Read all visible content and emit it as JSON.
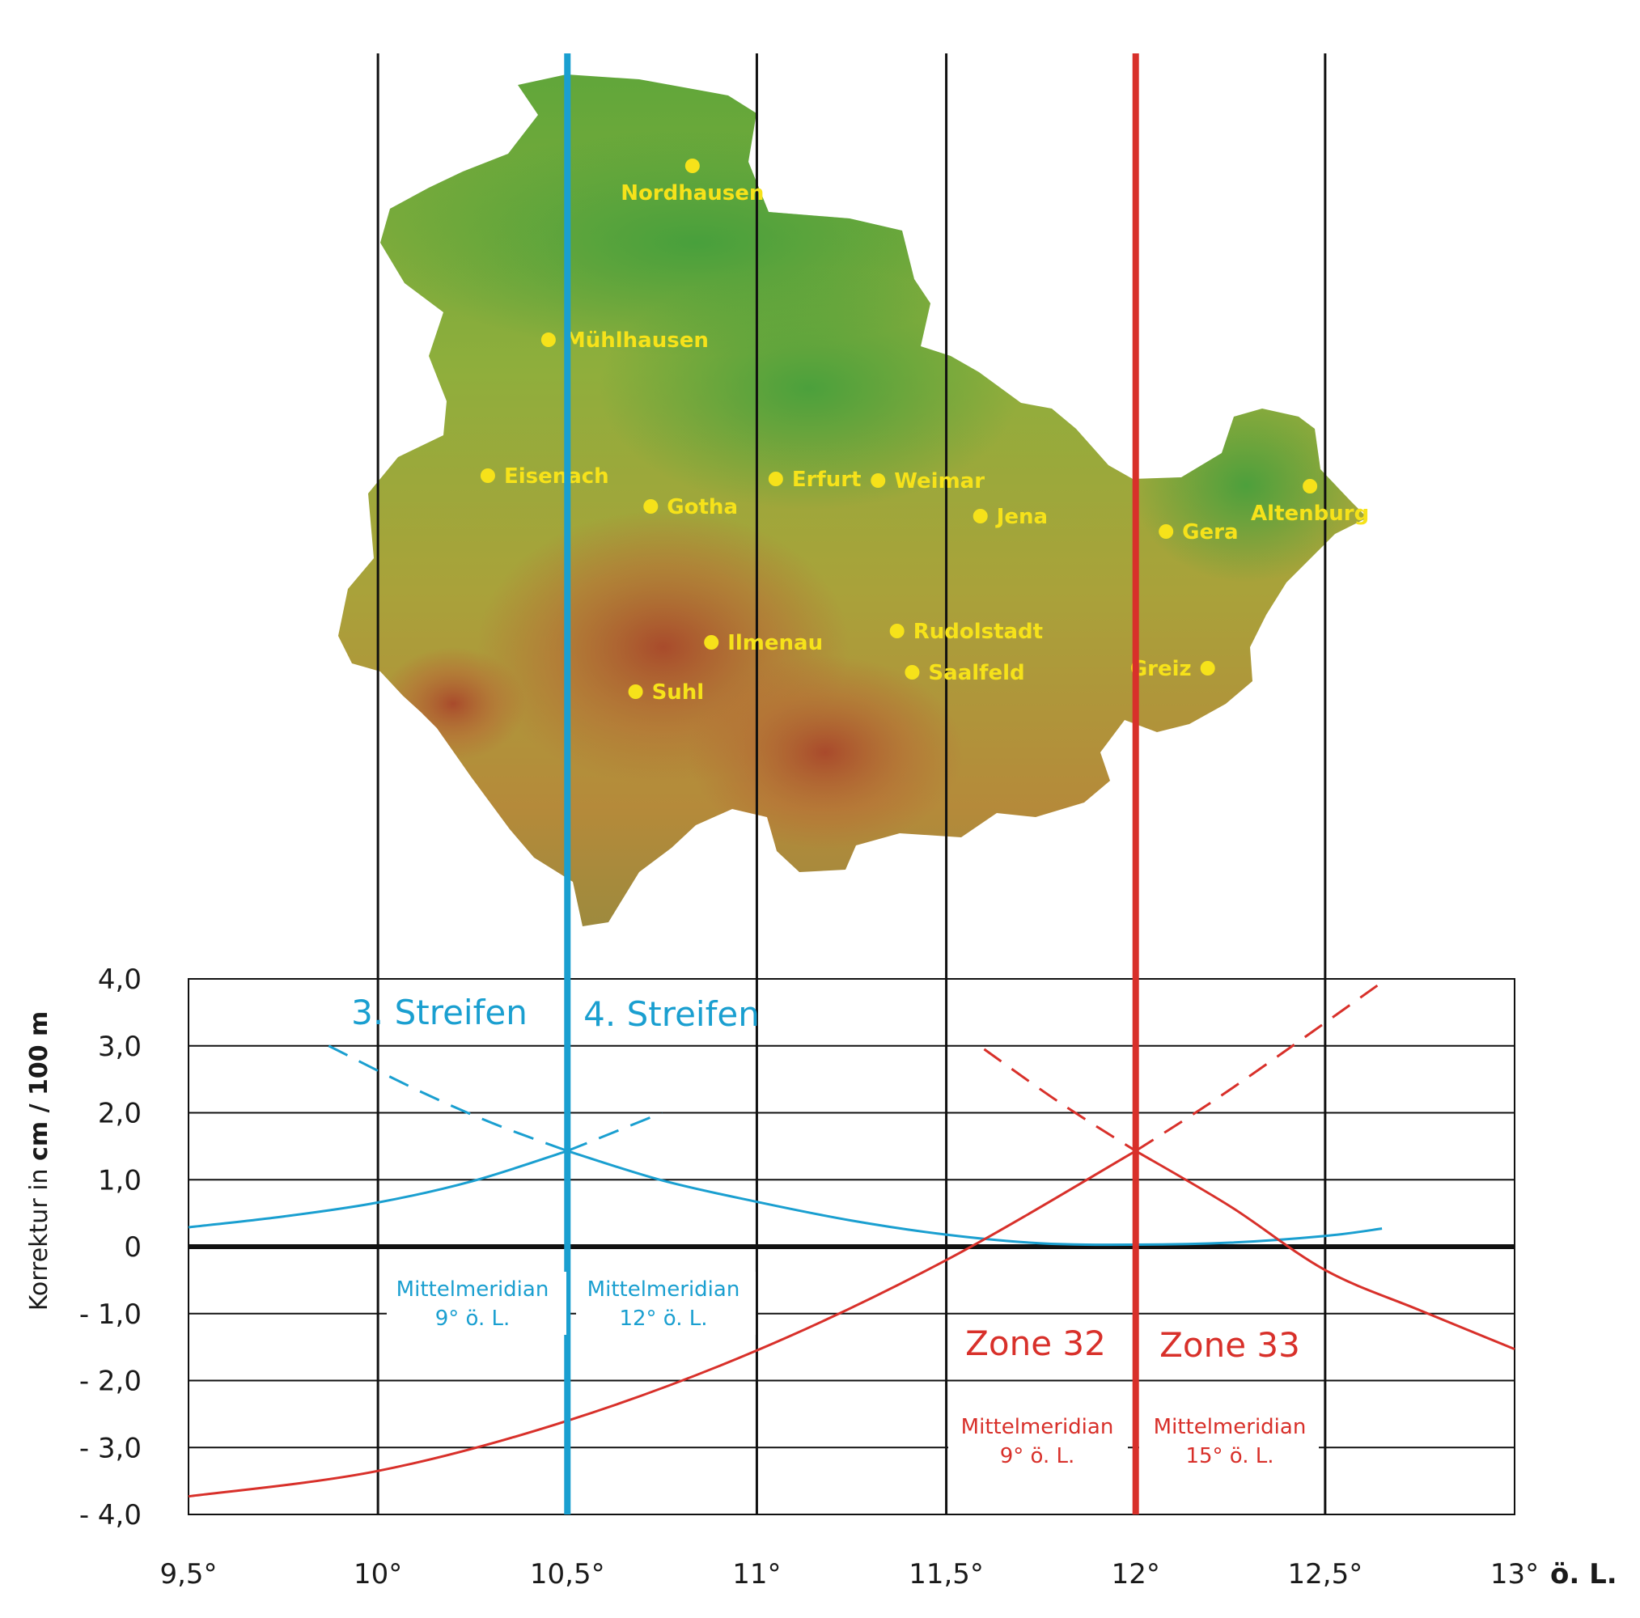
{
  "chart_data": {
    "type": "line",
    "xlim": [
      9.5,
      13.0
    ],
    "ylim": [
      -4.0,
      4.0
    ],
    "x_ticks": [
      "9,5°",
      "10°",
      "10,5°",
      "11°",
      "11,5°",
      "12°",
      "12,5°",
      "13°"
    ],
    "x_unit": "ö. L.",
    "y_ticks": [
      "4,0",
      "3,0",
      "2,0",
      "1,0",
      "0",
      "- 1,0",
      "- 2,0",
      "- 3,0",
      "- 4,0"
    ],
    "ylabel_prefix": "Korrektur in ",
    "ylabel_bold": "cm / 100 m",
    "grid": true,
    "colors": {
      "gk": "#1a9fd0",
      "utm": "#d8302a",
      "grid": "#000000"
    },
    "series": [
      {
        "name": "3. Streifen",
        "color": "#1a9fd0",
        "style": "solid",
        "x": [
          9.5,
          9.75,
          10.0,
          10.25,
          10.5
        ],
        "y": [
          0.29,
          0.45,
          0.66,
          0.98,
          1.43
        ]
      },
      {
        "name": "3. Streifen",
        "color": "#1a9fd0",
        "style": "dashed",
        "x": [
          10.5,
          10.75
        ],
        "y": [
          1.43,
          2.0
        ]
      },
      {
        "name": "4. Streifen",
        "color": "#1a9fd0",
        "style": "dashed",
        "x": [
          9.87,
          10.1,
          10.3,
          10.5
        ],
        "y": [
          3.0,
          2.35,
          1.85,
          1.43
        ]
      },
      {
        "name": "4. Streifen",
        "color": "#1a9fd0",
        "style": "solid",
        "x": [
          10.5,
          10.75,
          11.0,
          11.25,
          11.5,
          11.75,
          12.0,
          12.25,
          12.5,
          12.65
        ],
        "y": [
          1.43,
          0.99,
          0.67,
          0.39,
          0.18,
          0.05,
          0.03,
          0.06,
          0.16,
          0.27
        ]
      },
      {
        "name": "Zone 32",
        "color": "#d8302a",
        "style": "solid",
        "x": [
          9.5,
          10.0,
          10.5,
          11.0,
          11.5,
          12.0
        ],
        "y": [
          -3.73,
          -3.35,
          -2.6,
          -1.55,
          -0.2,
          1.43
        ]
      },
      {
        "name": "Zone 32",
        "color": "#d8302a",
        "style": "dashed",
        "x": [
          12.0,
          12.25,
          12.65
        ],
        "y": [
          1.43,
          2.35,
          3.95
        ]
      },
      {
        "name": "Zone 33",
        "color": "#d8302a",
        "style": "dashed",
        "x": [
          11.6,
          11.8,
          12.0
        ],
        "y": [
          2.95,
          2.15,
          1.43
        ]
      },
      {
        "name": "Zone 33",
        "color": "#d8302a",
        "style": "solid",
        "x": [
          12.0,
          12.25,
          12.5,
          12.75,
          13.0
        ],
        "y": [
          1.43,
          0.6,
          -0.35,
          -0.95,
          -1.53
        ]
      }
    ],
    "annotations": {
      "streifen3": "3. Streifen",
      "streifen4": "4. Streifen",
      "zone32": "Zone 32",
      "zone33": "Zone 33",
      "gk_left_line1": "Mittelmeridian",
      "gk_left_line2": "9° ö. L.",
      "gk_right_line1": "Mittelmeridian",
      "gk_right_line2": "12° ö. L.",
      "utm_left_line1": "Mittelmeridian",
      "utm_left_line2": "9° ö. L.",
      "utm_right_line1": "Mittelmeridian",
      "utm_right_line2": "15° ö. L."
    }
  },
  "map": {
    "cities": [
      {
        "name": "Nordhausen",
        "lon": 10.83,
        "row": 205,
        "label_side": "below"
      },
      {
        "name": "Mühlhausen",
        "lon": 10.45,
        "row": 420,
        "label_side": "right"
      },
      {
        "name": "Eisenach",
        "lon": 10.29,
        "row": 588,
        "label_side": "right"
      },
      {
        "name": "Gotha",
        "lon": 10.72,
        "row": 626,
        "label_side": "right"
      },
      {
        "name": "Erfurt",
        "lon": 11.05,
        "row": 592,
        "label_side": "right"
      },
      {
        "name": "Weimar",
        "lon": 11.32,
        "row": 594,
        "label_side": "right"
      },
      {
        "name": "Jena",
        "lon": 11.59,
        "row": 638,
        "label_side": "right"
      },
      {
        "name": "Gera",
        "lon": 12.08,
        "row": 657,
        "label_side": "right"
      },
      {
        "name": "Altenburg",
        "lon": 12.46,
        "row": 601,
        "label_side": "below"
      },
      {
        "name": "Ilmenau",
        "lon": 10.88,
        "row": 794,
        "label_side": "right"
      },
      {
        "name": "Suhl",
        "lon": 10.68,
        "row": 855,
        "label_side": "right"
      },
      {
        "name": "Rudolstadt",
        "lon": 11.37,
        "row": 780,
        "label_side": "right"
      },
      {
        "name": "Saalfeld",
        "lon": 11.41,
        "row": 831,
        "label_side": "right"
      },
      {
        "name": "Greiz",
        "lon": 12.19,
        "row": 826,
        "label_side": "left"
      }
    ]
  }
}
